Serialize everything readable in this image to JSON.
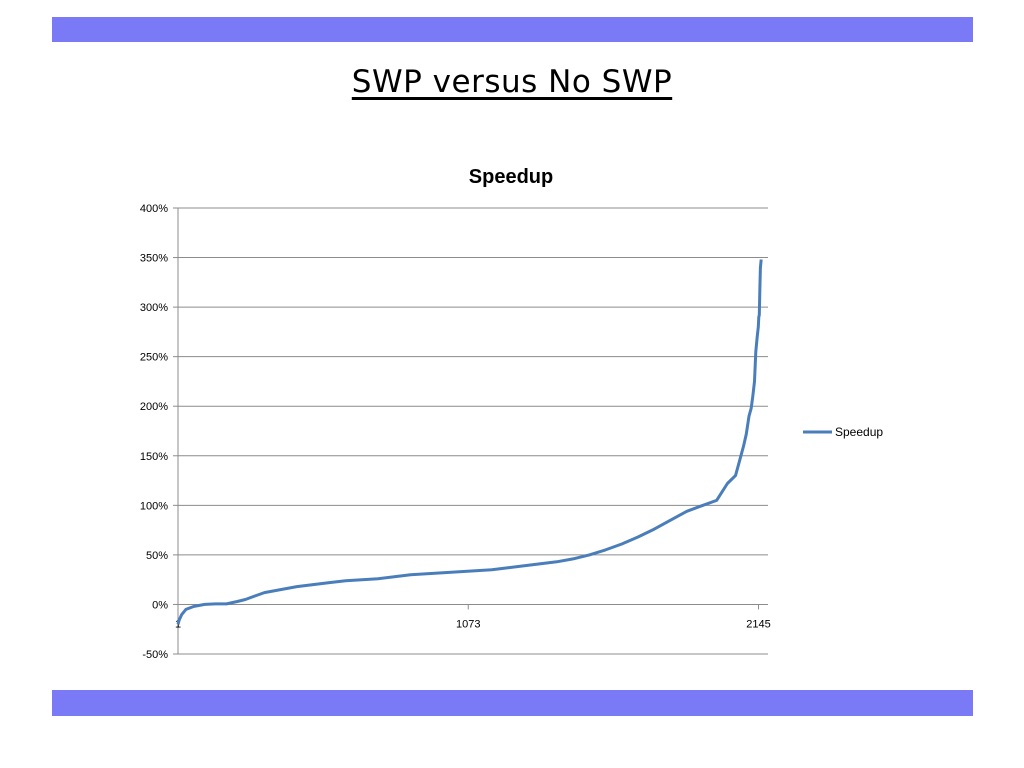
{
  "slide": {
    "title": "SWP versus No SWP",
    "band_color": "#7a7af6"
  },
  "chart_data": {
    "type": "line",
    "title": "Speedup",
    "xlabel": "",
    "ylabel": "",
    "ylim": [
      -50,
      400
    ],
    "xlim": [
      1,
      2180
    ],
    "y_tick_step": 50,
    "y_tick_format": "percent",
    "x_tick_labels": [
      {
        "value": 1,
        "label": "1"
      },
      {
        "value": 1073,
        "label": "1073"
      },
      {
        "value": 2145,
        "label": "2145"
      }
    ],
    "grid": true,
    "legend_placement": "right",
    "series": [
      {
        "name": "Speedup",
        "color": "#4a7ebb",
        "x": [
          1,
          5,
          15,
          30,
          60,
          100,
          140,
          180,
          220,
          250,
          280,
          320,
          360,
          400,
          440,
          500,
          560,
          620,
          680,
          740,
          800,
          860,
          920,
          980,
          1040,
          1100,
          1160,
          1220,
          1280,
          1340,
          1400,
          1460,
          1520,
          1580,
          1640,
          1700,
          1760,
          1820,
          1880,
          1940,
          1990,
          2030,
          2060,
          2075,
          2090,
          2100,
          2110,
          2118,
          2124,
          2130,
          2135,
          2140,
          2144,
          2146,
          2148,
          2150,
          2152,
          2155
        ],
        "values": [
          -20,
          -16,
          -10,
          -5,
          -2,
          0,
          0.5,
          0.5,
          3,
          5,
          8,
          12,
          14,
          16,
          18,
          20,
          22,
          24,
          25,
          26,
          28,
          30,
          31,
          32,
          33,
          34,
          35,
          37,
          39,
          41,
          43,
          46,
          50,
          55,
          61,
          68,
          76,
          85,
          94,
          100,
          105,
          122,
          130,
          145,
          160,
          172,
          190,
          198,
          210,
          225,
          255,
          270,
          280,
          290,
          292,
          320,
          340,
          348
        ]
      }
    ]
  }
}
